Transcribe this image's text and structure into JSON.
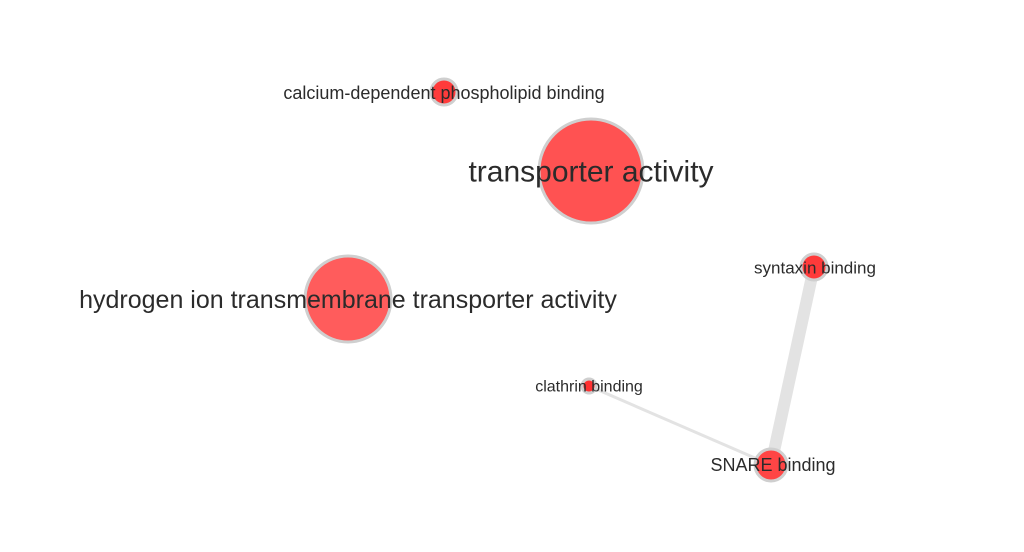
{
  "graph": {
    "nodes": [
      {
        "id": "transporter-activity",
        "label": "transporter activity",
        "color": "#ff5252"
      },
      {
        "id": "hydrogen-ion",
        "label": "hydrogen ion transmembrane transporter activity",
        "color": "#ff5c5c"
      },
      {
        "id": "calcium-phospholipid",
        "label": "calcium-dependent phospholipid binding",
        "color": "#ff3b3b"
      },
      {
        "id": "syntaxin-binding",
        "label": "syntaxin binding",
        "color": "#ff3a3a"
      },
      {
        "id": "clathrin-binding",
        "label": "clathrin binding",
        "color": "#ff3030"
      },
      {
        "id": "snare-binding",
        "label": "SNARE binding",
        "color": "#ff4545"
      }
    ],
    "edges": [
      {
        "source": "syntaxin-binding",
        "target": "snare-binding",
        "weight": "strong"
      },
      {
        "source": "clathrin-binding",
        "target": "snare-binding",
        "weight": "weak"
      }
    ],
    "edge_color": "#e3e3e3",
    "node_border_color": "#cfcfcf"
  }
}
